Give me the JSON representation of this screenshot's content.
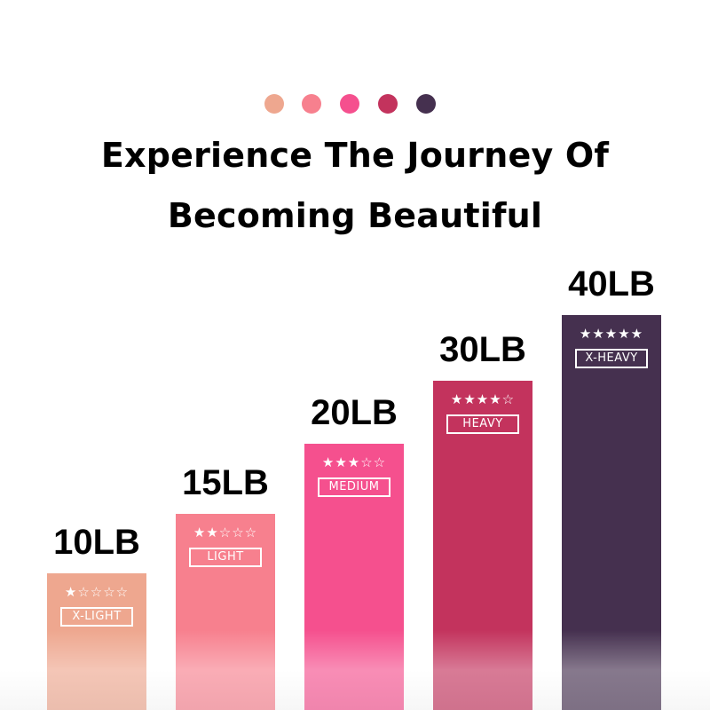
{
  "palette": [
    "#eea78f",
    "#f7808e",
    "#f5508e",
    "#c3335d",
    "#45304f"
  ],
  "title_line1": "Experience The Journey Of",
  "title_line2": "Becoming Beautiful",
  "chart_data": {
    "type": "bar",
    "categories": [
      "10LB",
      "15LB",
      "20LB",
      "30LB",
      "40LB"
    ],
    "values": [
      10,
      15,
      20,
      30,
      40
    ],
    "levels": [
      "X-LIGHT",
      "LIGHT",
      "MEDIUM",
      "HEAVY",
      "X-HEAVY"
    ],
    "star_ratings": [
      1,
      2,
      3,
      4,
      5
    ],
    "stars_max": 5,
    "colors": [
      "#eea78f",
      "#f7808e",
      "#f5508e",
      "#c3335d",
      "#45304f"
    ],
    "title": "",
    "xlabel": "",
    "ylabel": ""
  }
}
